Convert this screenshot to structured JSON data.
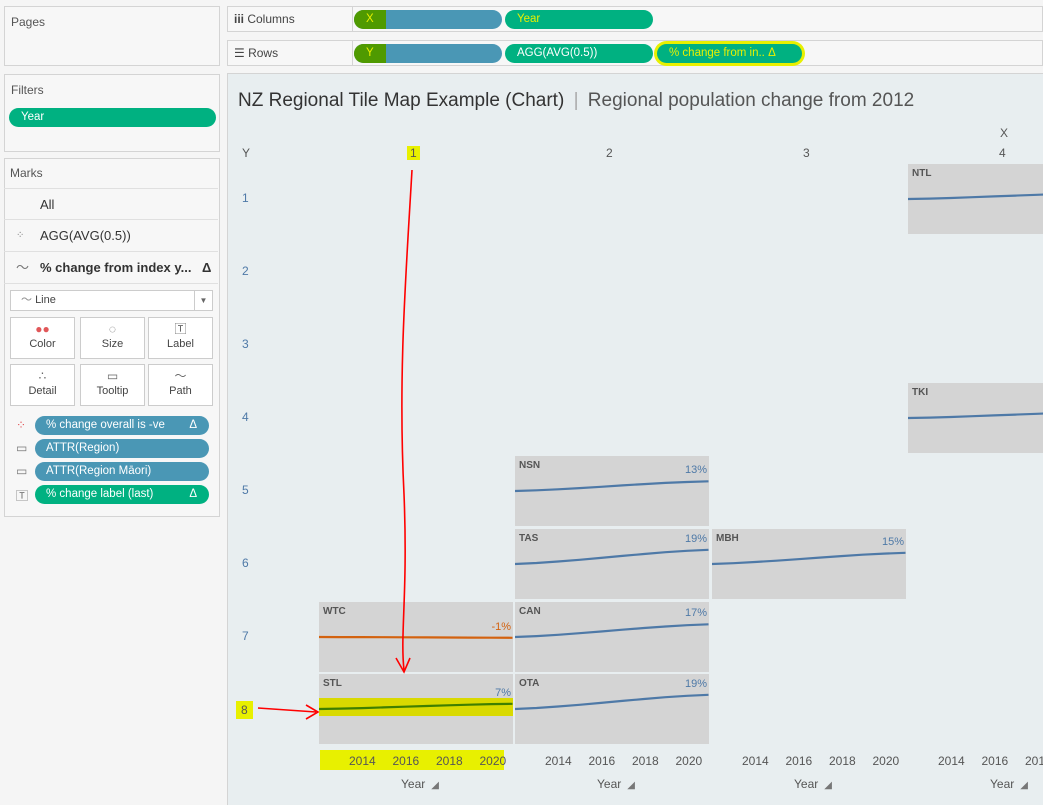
{
  "pages": {
    "title": "Pages"
  },
  "filters": {
    "title": "Filters",
    "items": [
      "Year"
    ]
  },
  "marks": {
    "title": "Marks",
    "all": "All",
    "layer1": "AGG(AVG(0.5))",
    "layer2": "% change from index y...",
    "layer2_delta": "Δ",
    "mark_type": "Line",
    "buttons": [
      "Color",
      "Size",
      "Label",
      "Detail",
      "Tooltip",
      "Path"
    ],
    "fields": [
      {
        "icon": "color-icon",
        "label": "% change overall is -ve",
        "delta": "Δ",
        "color": "blue"
      },
      {
        "icon": "tooltip-icon",
        "label": "ATTR(Region)",
        "delta": "",
        "color": "blue"
      },
      {
        "icon": "tooltip-icon",
        "label": "ATTR(Region Māori)",
        "delta": "",
        "color": "blue"
      },
      {
        "icon": "label-icon",
        "label": "% change label (last)",
        "delta": "Δ",
        "color": "green"
      }
    ]
  },
  "shelves": {
    "columns_label": "Columns",
    "rows_label": "Rows",
    "columns": [
      "X",
      "Year"
    ],
    "rows": [
      "Y",
      "AGG(AVG(0.5))",
      "% change from in..  Δ"
    ]
  },
  "viz": {
    "title": "NZ Regional Tile Map Example (Chart)",
    "separator": "|",
    "subtitle": "Regional population change from 2012",
    "x_header": "X",
    "y_header": "Y",
    "columns": [
      "1",
      "2",
      "3",
      "4"
    ],
    "rows": [
      "1",
      "2",
      "3",
      "4",
      "5",
      "6",
      "7",
      "8"
    ],
    "year_ticks": [
      "2014",
      "2016",
      "2018",
      "2020"
    ],
    "year_ticks_clipped": [
      "2014",
      "2016",
      "201"
    ],
    "axis_title": "Year",
    "pin": "📌"
  },
  "colors": {
    "positive": "#4e79a7",
    "negative": "#d3620f",
    "highlight": "#e8f000",
    "annotation": "#ff0000"
  },
  "chart_data": {
    "type": "line",
    "x_label": "Year",
    "x_range": [
      2012,
      2021
    ],
    "tiles": [
      {
        "code": "NTL",
        "col": 4,
        "row": 1,
        "label": ""
      },
      {
        "code": "TKI",
        "col": 4,
        "row": 4,
        "label": ""
      },
      {
        "code": "NSN",
        "col": 2,
        "row": 5,
        "label": "13%",
        "value": 13
      },
      {
        "code": "TAS",
        "col": 2,
        "row": 6,
        "label": "19%",
        "value": 19
      },
      {
        "code": "MBH",
        "col": 3,
        "row": 6,
        "label": "15%",
        "value": 15
      },
      {
        "code": "WTC",
        "col": 1,
        "row": 7,
        "label": "-1%",
        "value": -1
      },
      {
        "code": "CAN",
        "col": 2,
        "row": 7,
        "label": "17%",
        "value": 17
      },
      {
        "code": "STL",
        "col": 1,
        "row": 8,
        "label": "7%",
        "value": 7
      },
      {
        "code": "OTA",
        "col": 2,
        "row": 8,
        "label": "19%",
        "value": 19
      }
    ]
  }
}
